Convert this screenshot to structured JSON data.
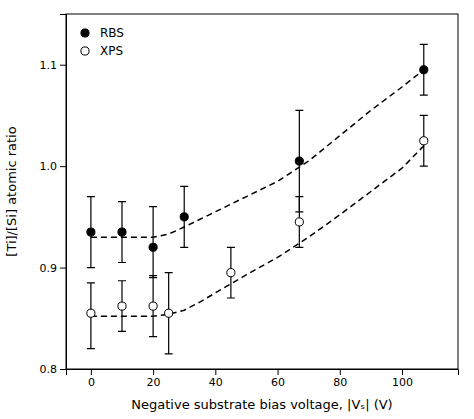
{
  "chart_data": {
    "type": "scatter",
    "x_label": "Negative substrate bias voltage, |Vₛ| (V)",
    "y_label": "[Ti]/[Si] atomic ratio",
    "xlim": [
      -8,
      118
    ],
    "ylim": [
      0.8,
      1.15
    ],
    "xticks": [
      0,
      20,
      40,
      60,
      80,
      100
    ],
    "yticks": [
      0.8,
      0.9,
      {
        "value": 1.0,
        "label": "1.0"
      },
      1.1
    ],
    "grid": false,
    "legend": "upper left",
    "series": [
      {
        "type": "line",
        "line_style": "dashed",
        "color": "black",
        "x": [
          0,
          5,
          10,
          15,
          20,
          25,
          30,
          40,
          50,
          60,
          70,
          80,
          90,
          100,
          107
        ],
        "values": [
          0.93,
          0.93,
          0.93,
          0.93,
          0.93,
          0.933,
          0.94,
          0.955,
          0.97,
          0.985,
          1.005,
          1.03,
          1.055,
          1.078,
          1.095
        ]
      },
      {
        "type": "line",
        "line_style": "dashed",
        "color": "black",
        "x": [
          0,
          5,
          10,
          15,
          20,
          25,
          30,
          35,
          40,
          50,
          60,
          70,
          80,
          90,
          100,
          107
        ],
        "values": [
          0.852,
          0.852,
          0.852,
          0.852,
          0.852,
          0.854,
          0.858,
          0.866,
          0.875,
          0.893,
          0.91,
          0.93,
          0.952,
          0.975,
          0.998,
          1.02
        ]
      },
      {
        "name": "RBS",
        "type": "scatter",
        "marker": "circle",
        "color": "black",
        "x": [
          0,
          10,
          20,
          30,
          67,
          107
        ],
        "values": [
          0.935,
          0.935,
          0.92,
          0.95,
          1.005,
          1.095
        ],
        "error_low": [
          0.035,
          0.03,
          0.03,
          0.03,
          0.05,
          0.025
        ],
        "error_high": [
          0.035,
          0.03,
          0.04,
          0.03,
          0.05,
          0.025
        ]
      },
      {
        "name": "XPS",
        "type": "scatter",
        "marker": "circle",
        "color": "white",
        "x": [
          0,
          10,
          20,
          25,
          45,
          67,
          107
        ],
        "values": [
          0.855,
          0.862,
          0.862,
          0.855,
          0.895,
          0.945,
          1.025
        ],
        "error_low": [
          0.035,
          0.025,
          0.03,
          0.04,
          0.025,
          0.025,
          0.025
        ],
        "error_high": [
          0.03,
          0.025,
          0.03,
          0.04,
          0.025,
          0.025,
          0.025
        ]
      }
    ]
  }
}
